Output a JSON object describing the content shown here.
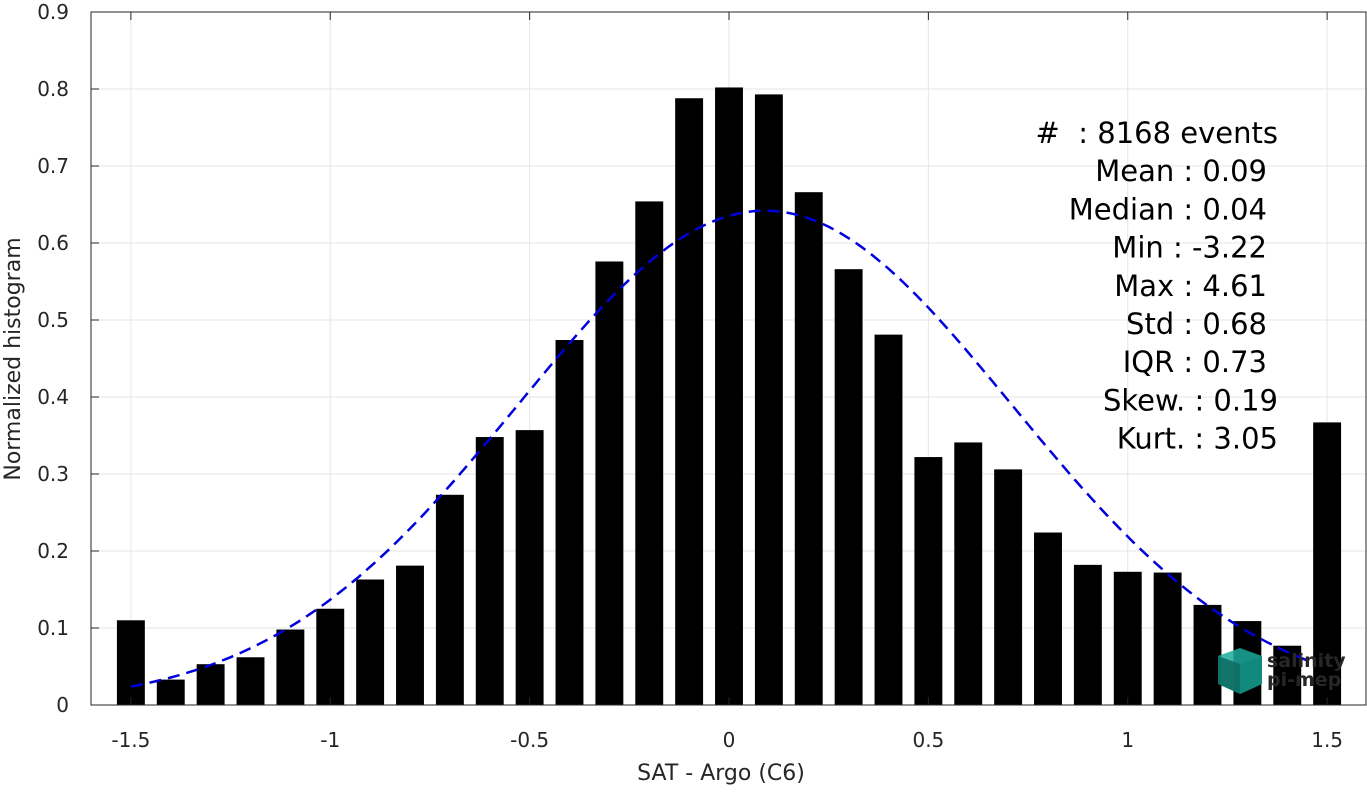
{
  "chart_data": {
    "type": "bar",
    "xlabel": "SAT - Argo (C6)",
    "ylabel": "Normalized histogram",
    "xlim": [
      -1.6,
      1.6
    ],
    "ylim": [
      0,
      0.9
    ],
    "grid": true,
    "xticks": [
      -1.5,
      -1,
      -0.5,
      0,
      0.5,
      1,
      1.5
    ],
    "xtick_labels": [
      "-1.5",
      "-1",
      "-0.5",
      "0",
      "0.5",
      "1",
      "1.5"
    ],
    "yticks": [
      0,
      0.1,
      0.2,
      0.3,
      0.4,
      0.5,
      0.6,
      0.7,
      0.8,
      0.9
    ],
    "ytick_labels": [
      "0",
      "0.1",
      "0.2",
      "0.3",
      "0.4",
      "0.5",
      "0.6",
      "0.7",
      "0.8",
      "0.9"
    ],
    "series": [
      {
        "type": "bar",
        "color": "#000000",
        "x": [
          -1.5,
          -1.4,
          -1.3,
          -1.2,
          -1.1,
          -1.0,
          -0.9,
          -0.8,
          -0.7,
          -0.6,
          -0.5,
          -0.4,
          -0.3,
          -0.2,
          -0.1,
          0.0,
          0.1,
          0.2,
          0.3,
          0.4,
          0.5,
          0.6,
          0.7,
          0.8,
          0.9,
          1.0,
          1.1,
          1.2,
          1.3,
          1.4,
          1.5
        ],
        "values": [
          0.11,
          0.033,
          0.053,
          0.062,
          0.098,
          0.125,
          0.163,
          0.181,
          0.273,
          0.348,
          0.357,
          0.474,
          0.576,
          0.654,
          0.788,
          0.802,
          0.793,
          0.666,
          0.566,
          0.481,
          0.322,
          0.341,
          0.306,
          0.224,
          0.182,
          0.173,
          0.172,
          0.13,
          0.109,
          0.077,
          0.367
        ]
      },
      {
        "type": "line",
        "style": "dashed",
        "color": "#0000dd",
        "mean": 0.09,
        "std": 0.62,
        "peak": 0.642,
        "xrange": [
          -1.5,
          1.45
        ]
      }
    ],
    "annotations": [
      "#  : 8168 events",
      "Mean : 0.09",
      "Median : 0.04",
      "Min : -3.22",
      "Max : 4.61",
      "Std : 0.68",
      "IQR : 0.73",
      "Skew. : 0.19",
      "Kurt. : 3.05"
    ]
  },
  "logo": {
    "line1": "salinity",
    "line2": "pi-mep",
    "color": "#1aaa9a",
    "dark_color": "#0d6e64"
  }
}
